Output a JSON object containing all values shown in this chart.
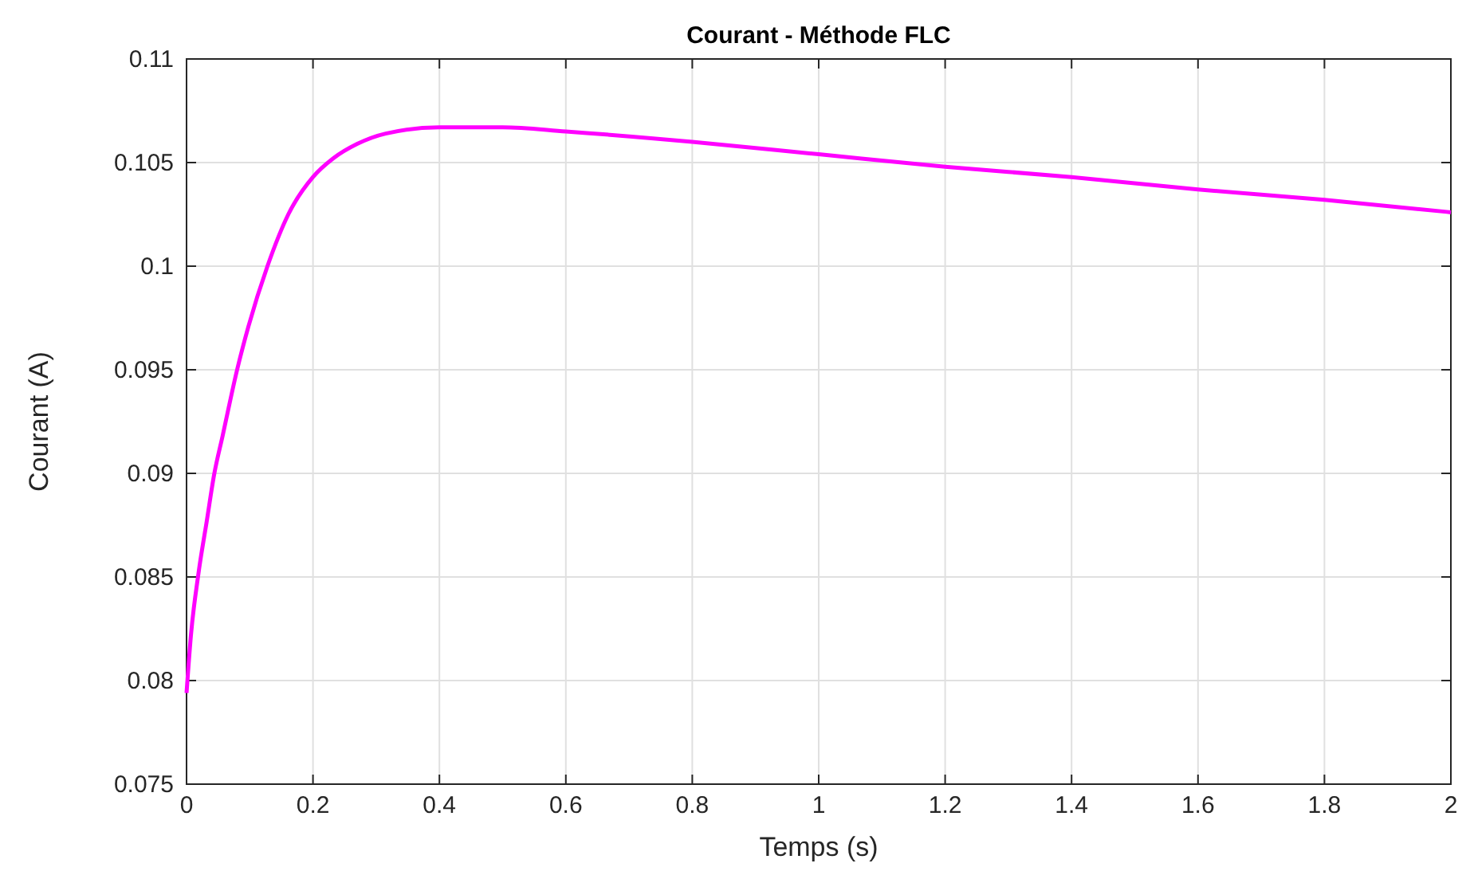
{
  "chart_data": {
    "type": "line",
    "title": "Courant - Méthode FLC",
    "xlabel": "Temps (s)",
    "ylabel": "Courant (A)",
    "xlim": [
      0,
      2
    ],
    "xticks": [
      0,
      0.2,
      0.4,
      0.6,
      0.8,
      1,
      1.2,
      1.4,
      1.6,
      1.8,
      2
    ],
    "ylim": [
      0.075,
      0.11
    ],
    "yticks": [
      0.075,
      0.08,
      0.085,
      0.09,
      0.095,
      0.1,
      0.105,
      0.11
    ],
    "grid": true,
    "marker": "none",
    "line_style": "solid",
    "series": [
      {
        "color": "#ff00ff",
        "x": [
          0,
          0.007,
          0.019,
          0.032,
          0.044,
          0.057,
          0.08,
          0.098,
          0.128,
          0.161,
          0.2,
          0.232,
          0.27,
          0.315,
          0.4,
          0.45,
          0.5,
          0.6,
          0.8,
          1,
          1.2,
          1.4,
          1.6,
          1.8,
          2
        ],
        "values": [
          0.0794,
          0.0822,
          0.0852,
          0.0877,
          0.09,
          0.0918,
          0.095,
          0.0971,
          0.1,
          0.1025,
          0.1043,
          0.1052,
          0.1059,
          0.1064,
          0.1067,
          0.1067,
          0.1067,
          0.1065,
          0.106,
          0.1054,
          0.1048,
          0.1043,
          0.1037,
          0.1032,
          0.1026
        ]
      }
    ]
  }
}
